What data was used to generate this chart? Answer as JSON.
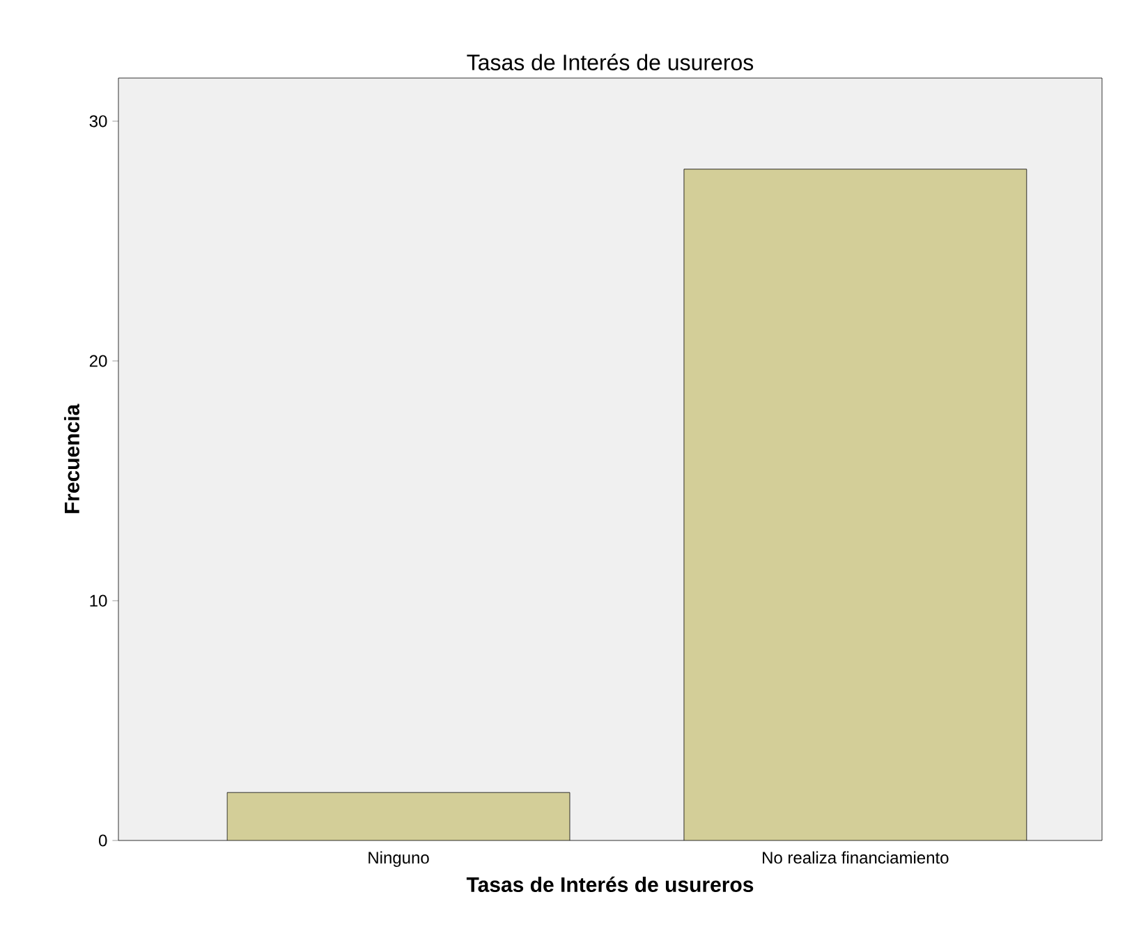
{
  "chart_data": {
    "type": "bar",
    "title": "Tasas de Interés de usureros",
    "xlabel": "Tasas de Interés de usureros",
    "ylabel": "Frecuencia",
    "categories": [
      "Ninguno",
      "No realiza financiamiento"
    ],
    "values": [
      2,
      28
    ],
    "color": "#d3ce98",
    "ylim": [
      0,
      31.8
    ],
    "yticks": [
      0,
      10,
      20,
      30
    ]
  }
}
